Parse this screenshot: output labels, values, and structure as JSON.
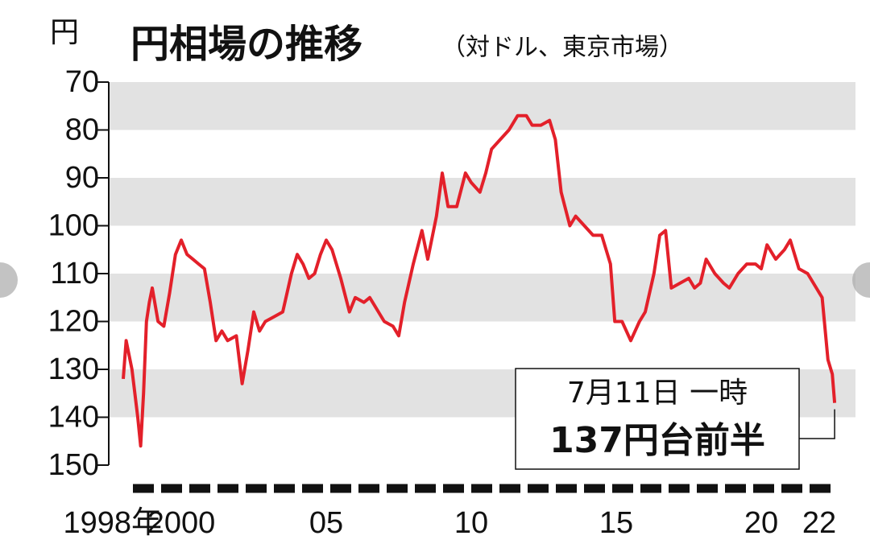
{
  "chart_data": {
    "type": "line",
    "title": "円相場の推移",
    "subtitle": "（対ドル、東京市場）",
    "y_label": "円",
    "annotation": {
      "line1": "7月11日 一時",
      "line2": "137円台前半"
    },
    "color": "#e3202a",
    "y_inverted": true,
    "grid_bands": true,
    "xlim": [
      1997.5,
      2023.25
    ],
    "xticks": [
      {
        "value": 1998,
        "label": "1998年"
      },
      2000,
      {
        "value": 2005,
        "label": "05"
      },
      {
        "value": 2010,
        "label": "10"
      },
      {
        "value": 2015,
        "label": "15"
      },
      {
        "value": 2020,
        "label": "20"
      },
      {
        "value": 2022,
        "label": "22"
      }
    ],
    "ylim": [
      70,
      150
    ],
    "yticks": [
      70,
      80,
      90,
      100,
      110,
      120,
      130,
      140,
      150
    ],
    "x": [
      1998.0,
      1998.1,
      1998.3,
      1998.5,
      1998.6,
      1998.7,
      1998.8,
      1998.9,
      1999.0,
      1999.2,
      1999.4,
      1999.6,
      1999.8,
      2000.0,
      2000.2,
      2000.4,
      2000.6,
      2000.8,
      2001.0,
      2001.2,
      2001.4,
      2001.6,
      2001.9,
      2002.1,
      2002.3,
      2002.5,
      2002.7,
      2002.9,
      2003.2,
      2003.5,
      2003.8,
      2004.0,
      2004.2,
      2004.4,
      2004.6,
      2004.8,
      2005.0,
      2005.2,
      2005.5,
      2005.8,
      2006.0,
      2006.3,
      2006.5,
      2006.8,
      2007.0,
      2007.3,
      2007.5,
      2007.7,
      2008.0,
      2008.3,
      2008.5,
      2008.8,
      2009.0,
      2009.2,
      2009.5,
      2009.8,
      2010.0,
      2010.3,
      2010.5,
      2010.7,
      2011.0,
      2011.3,
      2011.6,
      2011.9,
      2012.1,
      2012.4,
      2012.7,
      2012.9,
      2013.1,
      2013.4,
      2013.6,
      2013.9,
      2014.2,
      2014.5,
      2014.8,
      2014.95,
      2015.2,
      2015.5,
      2015.8,
      2016.0,
      2016.3,
      2016.5,
      2016.7,
      2016.9,
      2017.2,
      2017.5,
      2017.7,
      2017.9,
      2018.1,
      2018.4,
      2018.7,
      2018.9,
      2019.2,
      2019.5,
      2019.8,
      2020.0,
      2020.2,
      2020.5,
      2020.8,
      2021.0,
      2021.3,
      2021.6,
      2021.9,
      2022.1,
      2022.3,
      2022.45,
      2022.53
    ],
    "values": [
      132,
      124,
      130,
      140,
      146,
      135,
      120,
      116,
      113,
      120,
      121,
      114,
      106,
      103,
      106,
      107,
      108,
      109,
      116,
      124,
      122,
      124,
      123,
      133,
      126,
      118,
      122,
      120,
      119,
      118,
      110,
      106,
      108,
      111,
      110,
      106,
      103,
      105,
      111,
      118,
      115,
      116,
      115,
      118,
      120,
      121,
      123,
      116,
      108,
      101,
      107,
      98,
      89,
      96,
      96,
      89,
      91,
      93,
      89,
      84,
      82,
      80,
      77,
      77,
      79,
      79,
      78,
      82,
      93,
      100,
      98,
      100,
      102,
      102,
      108,
      120,
      120,
      124,
      120,
      118,
      110,
      102,
      101,
      113,
      112,
      111,
      113,
      112,
      107,
      110,
      112,
      113,
      110,
      108,
      108,
      109,
      104,
      107,
      105,
      103,
      109,
      110,
      113,
      115,
      128,
      131,
      137
    ]
  }
}
